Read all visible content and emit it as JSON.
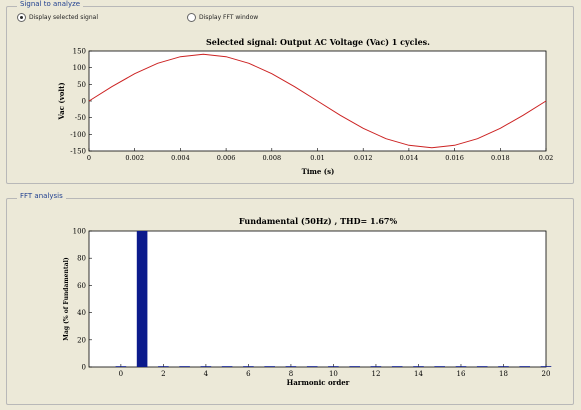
{
  "signal_panel": {
    "legend": "Signal to analyze",
    "radio_selected_signal": "Display selected signal",
    "radio_fft_window": "Display FFT window"
  },
  "fft_panel": {
    "legend": "FFT analysis"
  },
  "chart_data": [
    {
      "type": "line",
      "title": "Selected signal: Output AC Voltage (Vac) 1 cycles.",
      "xlabel": "Time (s)",
      "ylabel": "Vac (volt)",
      "xlim": [
        0,
        0.02
      ],
      "ylim": [
        -150,
        150
      ],
      "xticks": [
        "0",
        "0.002",
        "0.004",
        "0.006",
        "0.008",
        "0.01",
        "0.012",
        "0.014",
        "0.016",
        "0.018",
        "0.02"
      ],
      "yticks": [
        "150",
        "100",
        "50",
        "0",
        "-50",
        "-100",
        "-150"
      ],
      "grid": false,
      "series": [
        {
          "color": "#cc2222",
          "x": [
            0,
            0.001,
            0.002,
            0.003,
            0.004,
            0.005,
            0.006,
            0.007,
            0.008,
            0.009,
            0.01,
            0.011,
            0.012,
            0.013,
            0.014,
            0.015,
            0.016,
            0.017,
            0.018,
            0.019,
            0.02
          ],
          "y": [
            0,
            43,
            82,
            113,
            133,
            140,
            133,
            113,
            82,
            43,
            0,
            -43,
            -82,
            -113,
            -133,
            -140,
            -133,
            -113,
            -82,
            -43,
            0
          ]
        }
      ]
    },
    {
      "type": "bar",
      "title": "Fundamental (50Hz) , THD= 1.67%",
      "xlabel": "Harmonic order",
      "ylabel": "Mag (% of Fundamental)",
      "xlim": [
        -1.5,
        20
      ],
      "ylim": [
        0,
        100
      ],
      "xticks": [
        "0",
        "2",
        "4",
        "6",
        "8",
        "10",
        "12",
        "14",
        "16",
        "18",
        "20"
      ],
      "yticks": [
        "100",
        "80",
        "60",
        "40",
        "20",
        "0"
      ],
      "grid": false,
      "bar_color": "#0b1a8c",
      "x": [
        0,
        1,
        2,
        3,
        4,
        5,
        6,
        7,
        8,
        9,
        10,
        11,
        12,
        13,
        14,
        15,
        16,
        17,
        18,
        19,
        20
      ],
      "values": [
        0.3,
        100,
        0.6,
        0.4,
        0.3,
        0.3,
        0.3,
        0.2,
        0.2,
        0.2,
        0.2,
        0.2,
        0.2,
        0.2,
        0.2,
        0.2,
        0.2,
        0.2,
        0.2,
        0.2,
        0.2
      ]
    }
  ]
}
